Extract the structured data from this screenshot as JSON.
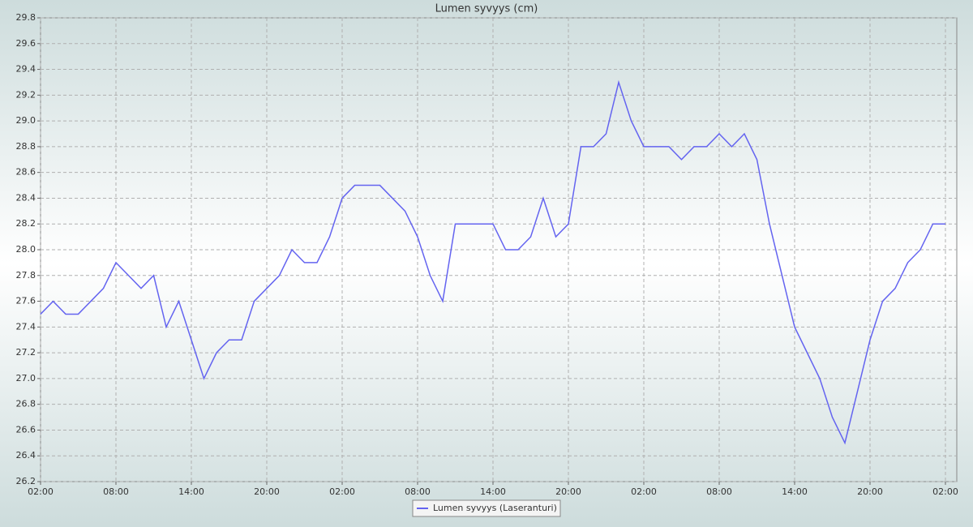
{
  "chart_data": {
    "type": "line",
    "title": "Lumen syvyys (cm)",
    "categories": [
      "02:00",
      null,
      null,
      null,
      null,
      null,
      "08:00",
      null,
      null,
      null,
      null,
      null,
      "14:00",
      null,
      null,
      null,
      null,
      null,
      "20:00",
      null,
      null,
      null,
      null,
      null,
      "02:00",
      null,
      null,
      null,
      null,
      null,
      "08:00",
      null,
      null,
      null,
      null,
      null,
      "14:00",
      null,
      null,
      null,
      null,
      null,
      "20:00",
      null,
      null,
      null,
      null,
      null,
      "02:00",
      null,
      null,
      null,
      null,
      null,
      "08:00",
      null,
      null,
      null,
      null,
      null,
      "14:00",
      null,
      null,
      null,
      null,
      null,
      "20:00",
      null,
      null,
      null,
      null,
      null,
      "02:00"
    ],
    "series": [
      {
        "name": "Lumen syvyys (Laseranturi)",
        "color": "#6464f0",
        "values": [
          27.5,
          27.6,
          27.5,
          27.5,
          27.6,
          27.7,
          27.9,
          27.8,
          27.7,
          27.8,
          27.4,
          27.6,
          27.3,
          27.0,
          27.2,
          27.3,
          27.3,
          27.6,
          27.7,
          27.8,
          28.0,
          27.9,
          27.9,
          28.1,
          28.4,
          28.5,
          28.5,
          28.5,
          28.4,
          28.3,
          28.1,
          27.8,
          27.6,
          28.2,
          28.2,
          28.2,
          28.2,
          28.0,
          28.0,
          28.1,
          28.4,
          28.1,
          28.2,
          28.8,
          28.8,
          28.9,
          29.3,
          29.0,
          28.8,
          28.8,
          28.8,
          28.7,
          28.8,
          28.8,
          28.9,
          28.8,
          28.9,
          28.7,
          28.2,
          27.8,
          27.4,
          27.2,
          27.0,
          26.7,
          26.5,
          26.9,
          27.3,
          27.6,
          27.7,
          27.9,
          28.0,
          28.2,
          28.2
        ]
      }
    ],
    "ylim": [
      26.2,
      29.8
    ],
    "yticks": [
      26.2,
      26.4,
      26.6,
      26.8,
      {
        "value": 27,
        "label": "27.0"
      },
      27.2,
      27.4,
      27.6,
      27.8,
      {
        "value": 28,
        "label": "28.0"
      },
      28.2,
      28.4,
      28.6,
      28.8,
      {
        "value": 29,
        "label": "29.0"
      },
      29.2,
      29.4,
      29.6,
      29.8
    ],
    "grid": true
  }
}
